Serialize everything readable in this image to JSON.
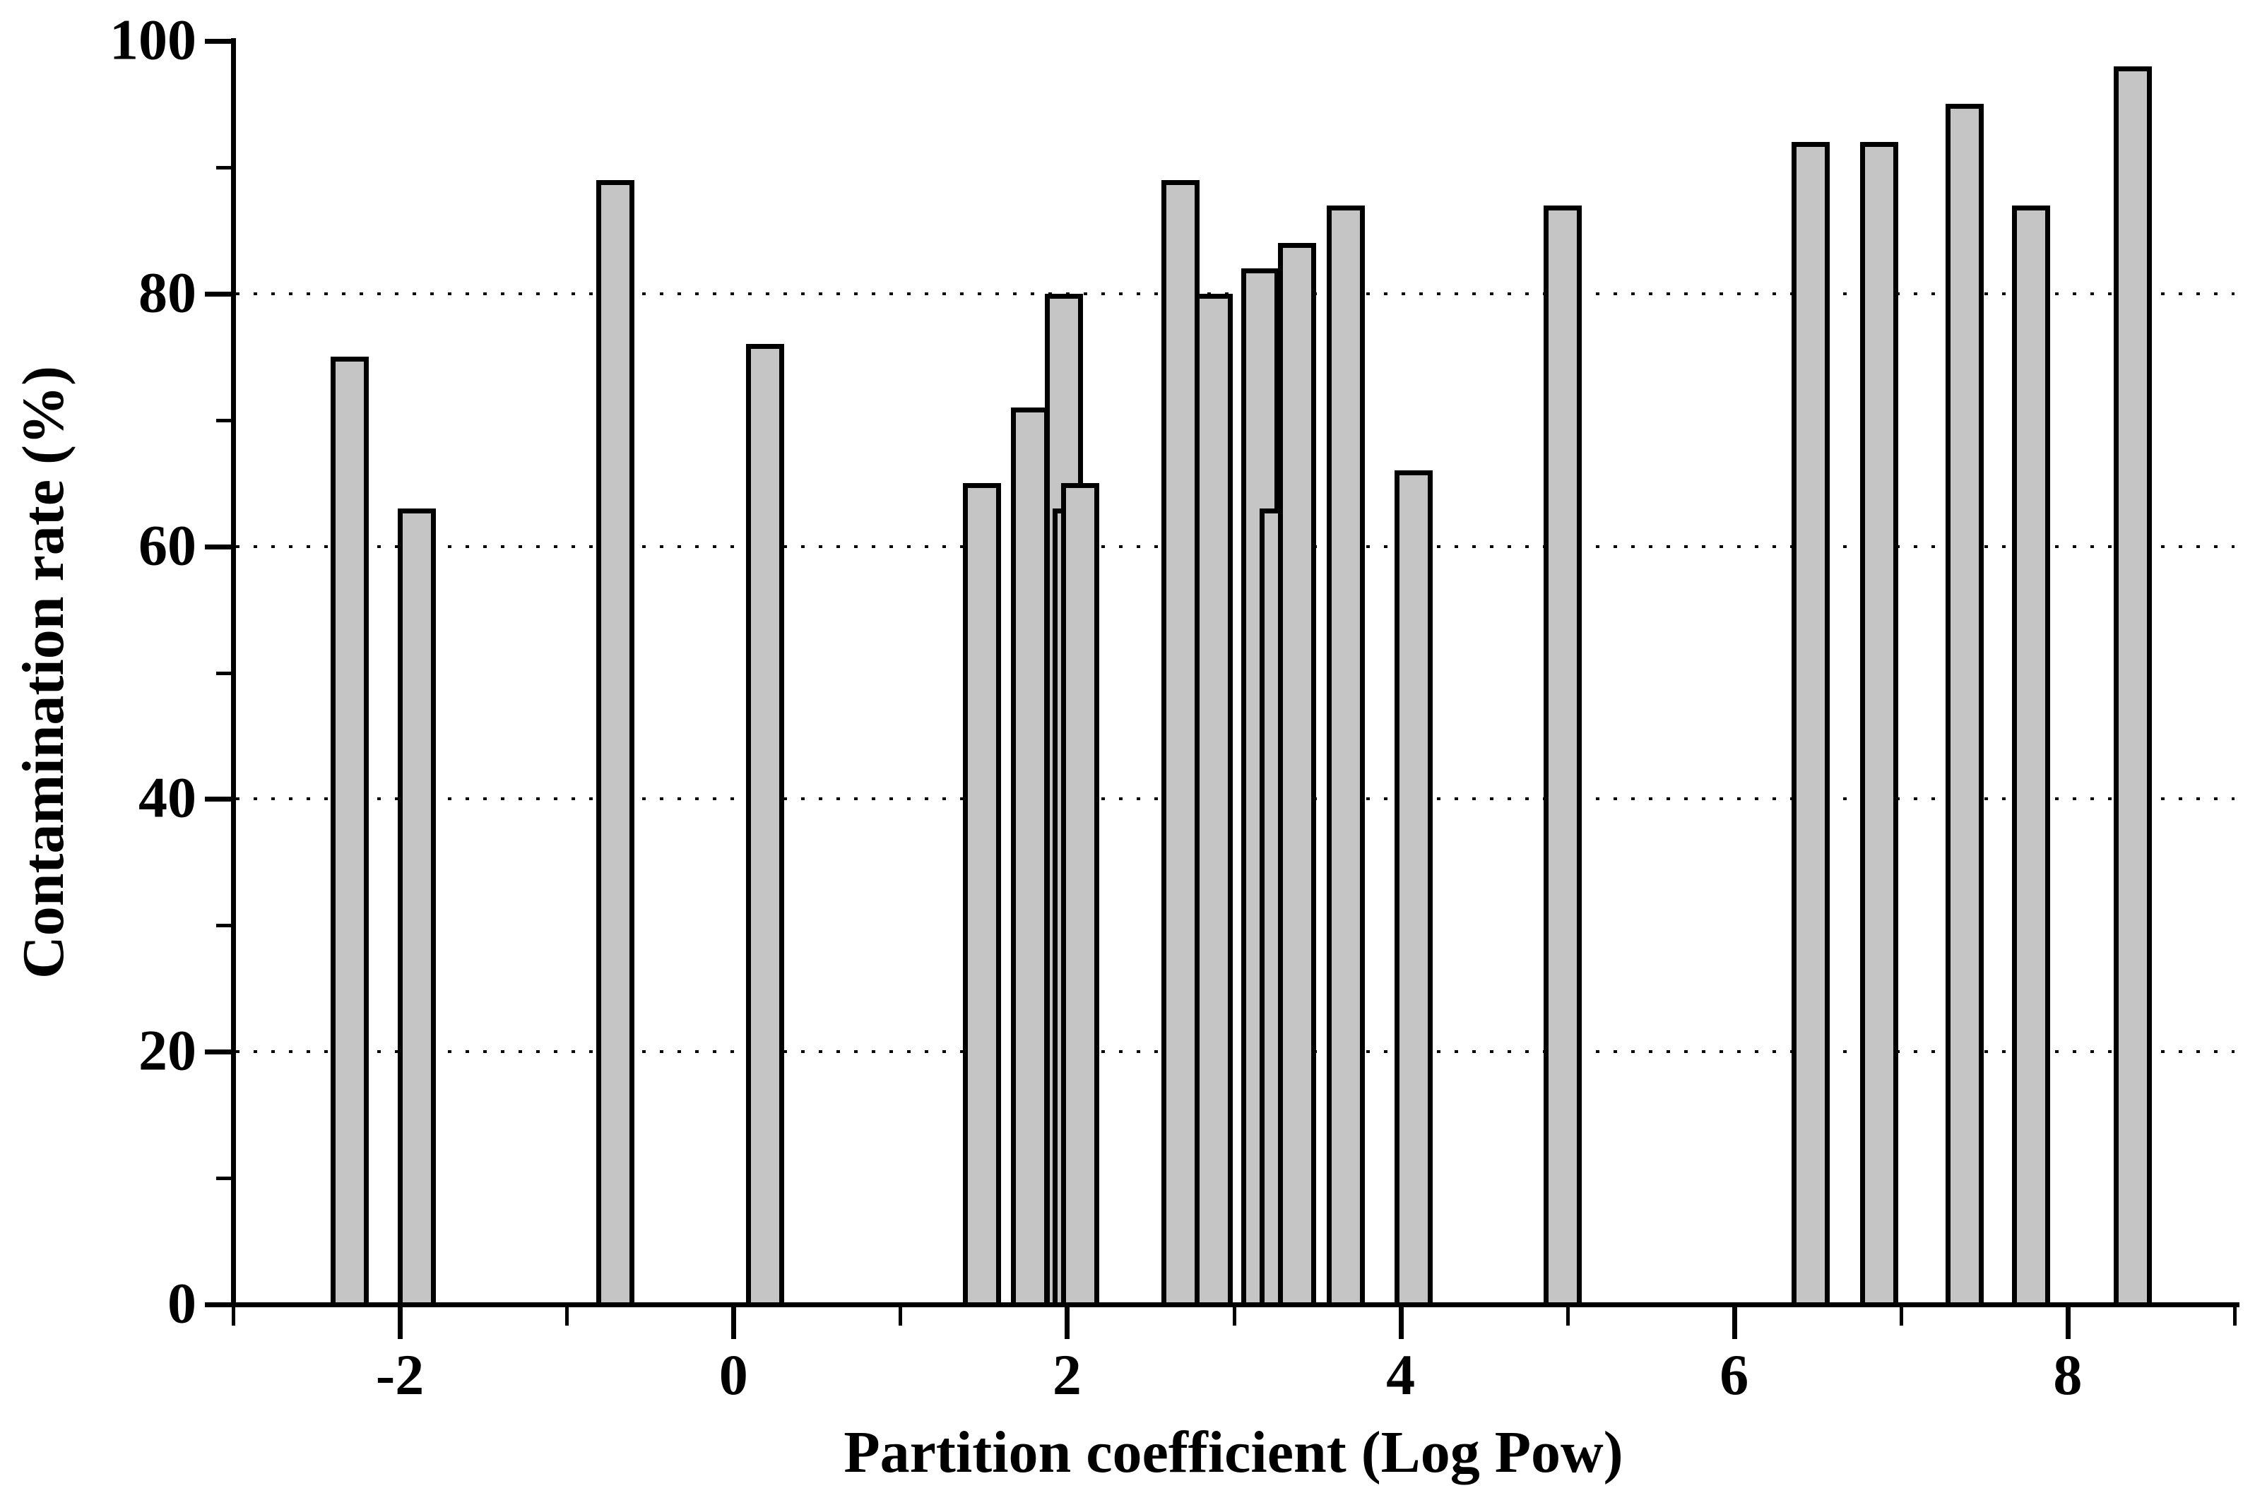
{
  "chart_data": {
    "type": "bar",
    "title": "",
    "xlabel": "Partition coefficient (Log Pow)",
    "ylabel": "Contamination rate (%)",
    "xlim": [
      -3,
      9
    ],
    "ylim": [
      0,
      100
    ],
    "x_major_ticks": [
      {
        "v": -2,
        "label": "-2"
      },
      {
        "v": 0,
        "label": "0"
      },
      {
        "v": 2,
        "label": "2"
      },
      {
        "v": 4,
        "label": "4"
      },
      {
        "v": 6,
        "label": "6"
      },
      {
        "v": 8,
        "label": "8"
      }
    ],
    "x_minor_ticks": [
      -3,
      -1,
      1,
      3,
      5,
      7,
      9
    ],
    "y_major_ticks": [
      {
        "v": 0,
        "label": "0"
      },
      {
        "v": 20,
        "label": "20"
      },
      {
        "v": 40,
        "label": "40"
      },
      {
        "v": 60,
        "label": "60"
      },
      {
        "v": 80,
        "label": "80"
      },
      {
        "v": 100,
        "label": "100"
      }
    ],
    "y_minor_ticks": [
      10,
      30,
      50,
      70,
      90
    ],
    "gridlines_y": [
      20,
      40,
      60,
      80
    ],
    "grid_style": "dotted",
    "legend": "none",
    "bar_fill": "#c5c5c5",
    "bar_edge": "#000000",
    "bar_width_units": 0.23,
    "points": [
      {
        "log_pow": -2.3,
        "rate": 75
      },
      {
        "log_pow": -1.9,
        "rate": 63
      },
      {
        "log_pow": -0.71,
        "rate": 89
      },
      {
        "log_pow": 0.19,
        "rate": 76
      },
      {
        "log_pow": 1.49,
        "rate": 65
      },
      {
        "log_pow": 1.78,
        "rate": 71
      },
      {
        "log_pow": 1.98,
        "rate": 80
      },
      {
        "log_pow": 2.03,
        "rate": 63
      },
      {
        "log_pow": 2.08,
        "rate": 65
      },
      {
        "log_pow": 2.68,
        "rate": 89
      },
      {
        "log_pow": 2.88,
        "rate": 80
      },
      {
        "log_pow": 3.16,
        "rate": 82
      },
      {
        "log_pow": 3.27,
        "rate": 63
      },
      {
        "log_pow": 3.38,
        "rate": 84
      },
      {
        "log_pow": 3.67,
        "rate": 87
      },
      {
        "log_pow": 4.08,
        "rate": 66
      },
      {
        "log_pow": 4.97,
        "rate": 87
      },
      {
        "log_pow": 6.46,
        "rate": 92
      },
      {
        "log_pow": 6.87,
        "rate": 92
      },
      {
        "log_pow": 7.38,
        "rate": 95
      },
      {
        "log_pow": 7.78,
        "rate": 87
      },
      {
        "log_pow": 8.39,
        "rate": 98
      }
    ]
  }
}
